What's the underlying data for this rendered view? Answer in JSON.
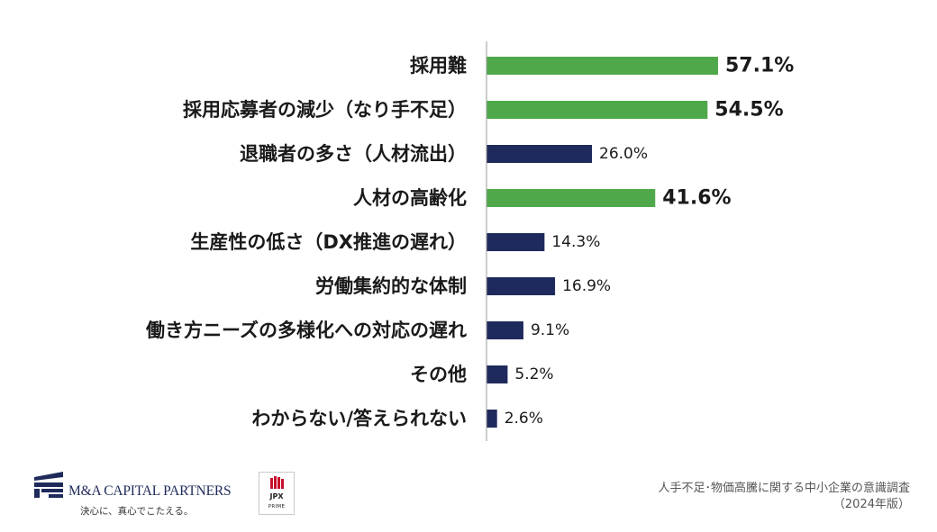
{
  "chart_data": {
    "type": "bar",
    "orientation": "horizontal",
    "categories": [
      "採用難",
      "採用応募者の減少（なり手不足）",
      "退職者の多さ（人材流出）",
      "人材の高齢化",
      "生産性の低さ（DX推進の遅れ）",
      "労働集約的な体制",
      "働き方ニーズの多様化への対応の遅れ",
      "その他",
      "わからない/答えられない"
    ],
    "values": [
      57.1,
      54.5,
      26.0,
      41.6,
      14.3,
      16.9,
      9.1,
      5.2,
      2.6
    ],
    "value_labels": [
      "57.1%",
      "54.5%",
      "26.0%",
      "41.6%",
      "14.3%",
      "16.9%",
      "9.1%",
      "5.2%",
      "2.6%"
    ],
    "highlighted": [
      true,
      true,
      false,
      true,
      false,
      false,
      false,
      false,
      false
    ],
    "colors": {
      "highlight": "#4fa94a",
      "normal": "#1f2a5c",
      "axis": "#999999",
      "label": "#1a1a1a"
    },
    "xlim": [
      0,
      60
    ],
    "grid": false,
    "legend": "none"
  },
  "footer": {
    "company_name": "M&A CAPITAL PARTNERS",
    "tagline": "決心に、真心でこたえる。",
    "jpx_label": "JPX",
    "jpx_sub": "PRIME",
    "source_line1": "人手不足･物価高騰に関する中小企業の意識調査",
    "source_line2": "（2024年版）",
    "brand_color": "#1e2a5a"
  }
}
